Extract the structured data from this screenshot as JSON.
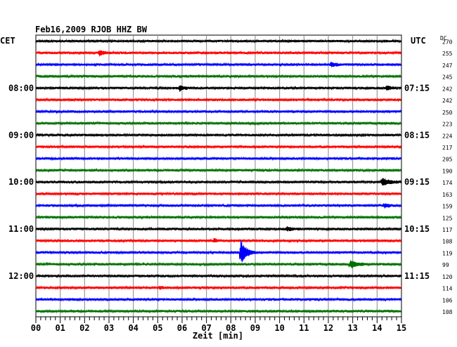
{
  "chart_data": {
    "type": "line",
    "title": "Feb16,2009  RJOB HHZ BW",
    "xlabel": "Zeit [min]",
    "xlim": [
      0,
      15
    ],
    "x_ticks": [
      "00",
      "01",
      "02",
      "03",
      "04",
      "05",
      "06",
      "07",
      "08",
      "09",
      "10",
      "11",
      "12",
      "13",
      "14",
      "15"
    ],
    "left_axis_label": "CET",
    "right_axis_label": "UTC",
    "dc_label": "DC",
    "left_hour_labels": [
      {
        "row": 4,
        "text": "08:00"
      },
      {
        "row": 8,
        "text": "09:00"
      },
      {
        "row": 12,
        "text": "10:00"
      },
      {
        "row": 16,
        "text": "11:00"
      },
      {
        "row": 20,
        "text": "12:00"
      }
    ],
    "right_hour_labels": [
      {
        "row": 4,
        "text": "07:15"
      },
      {
        "row": 8,
        "text": "08:15"
      },
      {
        "row": 12,
        "text": "09:15"
      },
      {
        "row": 16,
        "text": "10:15"
      },
      {
        "row": 20,
        "text": "11:15"
      }
    ],
    "trace_colors": [
      "#000000",
      "#ff0000",
      "#0000ff",
      "#007000"
    ],
    "dc_values": [
      "270",
      "255",
      "247",
      "245",
      "242",
      "242",
      "250",
      "223",
      "224",
      "217",
      "205",
      "190",
      "174",
      "163",
      "159",
      "125",
      "117",
      "108",
      "119",
      "99",
      "120",
      "114",
      "106",
      "108"
    ],
    "events": [
      {
        "row": 1,
        "minute": 2.6,
        "amplitude": 4,
        "duration": 0.5
      },
      {
        "row": 2,
        "minute": 12.1,
        "amplitude": 3,
        "duration": 0.6
      },
      {
        "row": 4,
        "minute": 5.9,
        "amplitude": 4,
        "duration": 0.5
      },
      {
        "row": 4,
        "minute": 14.4,
        "amplitude": 3,
        "duration": 0.6
      },
      {
        "row": 12,
        "minute": 14.2,
        "amplitude": 5,
        "duration": 0.9
      },
      {
        "row": 14,
        "minute": 14.3,
        "amplitude": 3,
        "duration": 0.6
      },
      {
        "row": 16,
        "minute": 10.3,
        "amplitude": 3,
        "duration": 0.5
      },
      {
        "row": 17,
        "minute": 7.3,
        "amplitude": 3,
        "duration": 0.4
      },
      {
        "row": 18,
        "minute": 8.4,
        "amplitude": 18,
        "duration": 0.6
      },
      {
        "row": 19,
        "minute": 12.9,
        "amplitude": 6,
        "duration": 0.7
      },
      {
        "row": 21,
        "minute": 5.1,
        "amplitude": 2,
        "duration": 0.3
      }
    ],
    "grid": true,
    "noise_amplitude": 1.4
  }
}
